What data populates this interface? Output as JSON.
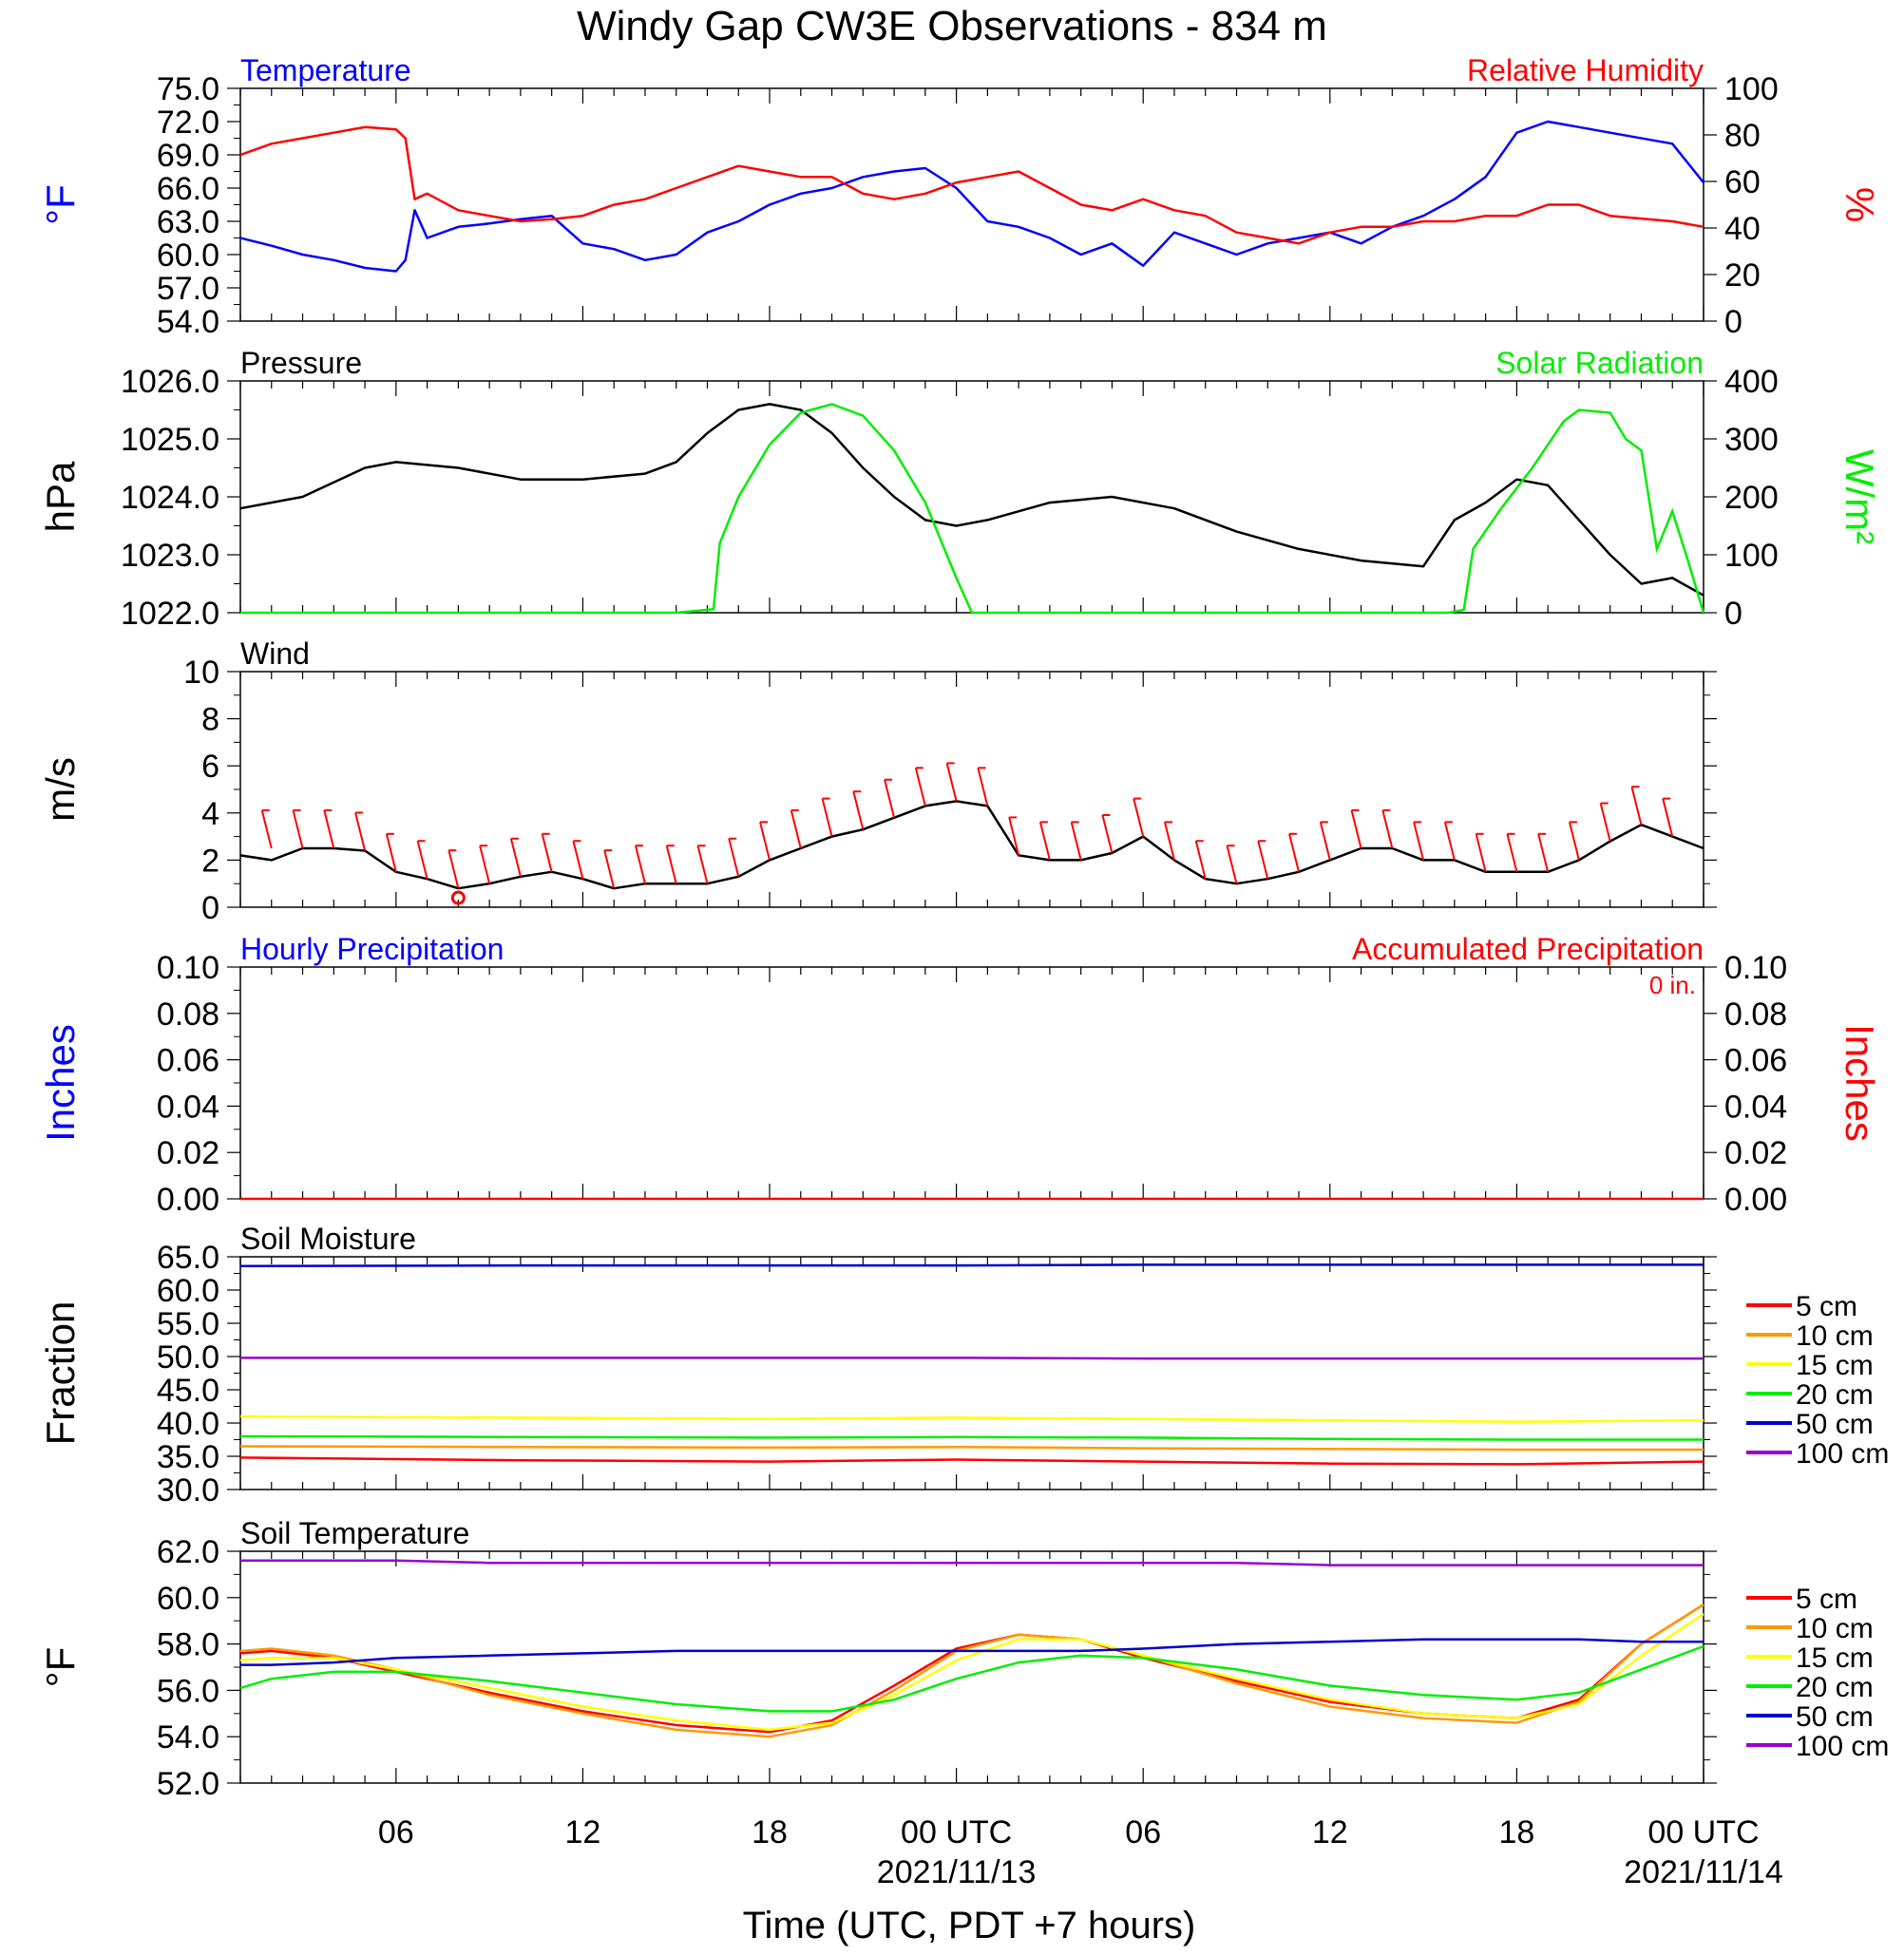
{
  "title": "Windy Gap CW3E Observations - 834 m",
  "xaxis": {
    "label": "Time (UTC, PDT +7 hours)",
    "ticks": [
      "06",
      "12",
      "18",
      "00 UTC",
      "06",
      "12",
      "18",
      "00 UTC"
    ],
    "dates": [
      "2021/11/13",
      "2021/11/14"
    ]
  },
  "colors": {
    "blue": "#0000ff",
    "red": "#ff0000",
    "green": "#00ee00",
    "black": "#000000",
    "orange": "#ff9900",
    "yellow": "#ffff00",
    "purple": "#9900cc",
    "soil50": "#0000cc"
  },
  "chart_data": [
    {
      "id": "temp_rh",
      "type": "line",
      "title_left": "Temperature",
      "title_right": "Relative Humidity",
      "ylabel_left": "°F",
      "ylabel_right": "%",
      "y_left_ticks": [
        "54.0",
        "57.0",
        "60.0",
        "63.0",
        "66.0",
        "69.0",
        "72.0",
        "75.0"
      ],
      "y_right_ticks": [
        "0",
        "20",
        "40",
        "60",
        "80",
        "100"
      ],
      "ylim_left": [
        54,
        75
      ],
      "ylim_right": [
        0,
        100
      ],
      "x": [
        1,
        2,
        3,
        4,
        5,
        6,
        6.3,
        6.6,
        7,
        8,
        9,
        10,
        11,
        12,
        13,
        14,
        15,
        16,
        17,
        18,
        19,
        20,
        21,
        22,
        23,
        24,
        25,
        26,
        27,
        28,
        29,
        30,
        31,
        32,
        33,
        34,
        35,
        36,
        37,
        38,
        39,
        40,
        41,
        42,
        43,
        44,
        45,
        47,
        48
      ],
      "series": [
        {
          "name": "Temperature",
          "color": "blue",
          "axis": "left",
          "values": [
            61.5,
            60.8,
            60.0,
            59.5,
            58.8,
            58.5,
            59.5,
            64.0,
            61.5,
            62.5,
            62.8,
            63.2,
            63.5,
            61.0,
            60.5,
            59.5,
            60.0,
            62.0,
            63.0,
            64.5,
            65.5,
            66.0,
            67.0,
            67.5,
            67.8,
            66.0,
            63.0,
            62.5,
            61.5,
            60.0,
            61.0,
            59.0,
            62.0,
            61.0,
            60.0,
            61.0,
            61.5,
            62.0,
            61.0,
            62.5,
            63.5,
            65.0,
            67.0,
            71.0,
            72.0,
            71.5,
            71.0,
            70.0,
            66.5
          ]
        },
        {
          "name": "Relative Humidity",
          "color": "red",
          "axis": "left",
          "values": [
            69.0,
            70.0,
            70.5,
            71.0,
            71.5,
            71.3,
            70.5,
            65.0,
            65.5,
            64.0,
            63.5,
            63.0,
            63.2,
            63.5,
            64.5,
            65.0,
            66.0,
            67.0,
            68.0,
            67.5,
            67.0,
            67.0,
            65.5,
            65.0,
            65.5,
            66.5,
            67.0,
            67.5,
            66.0,
            64.5,
            64.0,
            65.0,
            64.0,
            63.5,
            62.0,
            61.5,
            61.0,
            62.0,
            62.5,
            62.5,
            63.0,
            63.0,
            63.5,
            63.5,
            64.5,
            64.5,
            63.5,
            63.0,
            62.5
          ]
        }
      ]
    },
    {
      "id": "pressure_solar",
      "type": "line",
      "title_left": "Pressure",
      "title_right": "Solar Radiation",
      "ylabel_left": "hPa",
      "ylabel_right": "W/m²",
      "y_left_ticks": [
        "1022.0",
        "1023.0",
        "1024.0",
        "1025.0",
        "1026.0"
      ],
      "y_right_ticks": [
        "0",
        "100",
        "200",
        "300",
        "400"
      ],
      "ylim_left": [
        1022,
        1026
      ],
      "ylim_right": [
        0,
        400
      ],
      "x": [
        1,
        3,
        5,
        6,
        8,
        10,
        12,
        14,
        15,
        16,
        17,
        18,
        19,
        20,
        21,
        22,
        23,
        24,
        25,
        27,
        29,
        31,
        33,
        35,
        37,
        39,
        40,
        41,
        42,
        43,
        44,
        45,
        46,
        47,
        48
      ],
      "series": [
        {
          "name": "Pressure",
          "color": "black",
          "axis": "left",
          "values": [
            1023.8,
            1024.0,
            1024.5,
            1024.6,
            1024.5,
            1024.3,
            1024.3,
            1024.4,
            1024.6,
            1025.1,
            1025.5,
            1025.6,
            1025.5,
            1025.1,
            1024.5,
            1024.0,
            1023.6,
            1023.5,
            1023.6,
            1023.9,
            1024.0,
            1023.8,
            1023.4,
            1023.1,
            1022.9,
            1022.8,
            1023.6,
            1023.9,
            1024.3,
            1024.2,
            1023.6,
            1023.0,
            1022.5,
            1022.6,
            1022.3
          ]
        }
      ]
    },
    {
      "id": "wind",
      "type": "line",
      "title_left": "Wind",
      "ylabel_left": "m/s",
      "y_left_ticks": [
        "0",
        "2",
        "4",
        "6",
        "8",
        "10"
      ],
      "ylim_left": [
        0,
        10
      ],
      "x": [
        1,
        2,
        3,
        4,
        5,
        6,
        7,
        8,
        9,
        10,
        11,
        12,
        13,
        14,
        15,
        16,
        17,
        18,
        19,
        20,
        21,
        22,
        23,
        24,
        25,
        26,
        27,
        28,
        29,
        30,
        31,
        32,
        33,
        34,
        35,
        36,
        37,
        38,
        39,
        40,
        41,
        42,
        43,
        44,
        45,
        46,
        47,
        48
      ],
      "series": [
        {
          "name": "Wind Speed",
          "color": "black",
          "axis": "left",
          "values": [
            2.2,
            2.0,
            2.5,
            2.5,
            2.4,
            1.5,
            1.2,
            0.8,
            1.0,
            1.3,
            1.5,
            1.2,
            0.8,
            1.0,
            1.0,
            1.0,
            1.3,
            2.0,
            2.5,
            3.0,
            3.3,
            3.8,
            4.3,
            4.5,
            4.3,
            2.2,
            2.0,
            2.0,
            2.3,
            3.0,
            2.0,
            1.2,
            1.0,
            1.2,
            1.5,
            2.0,
            2.5,
            2.5,
            2.0,
            2.0,
            1.5,
            1.5,
            1.5,
            2.0,
            2.8,
            3.5,
            3.0,
            2.5
          ]
        }
      ],
      "barb_x": [
        2,
        3,
        4,
        5,
        6,
        7,
        8,
        9,
        10,
        11,
        12,
        13,
        14,
        15,
        16,
        17,
        18,
        19,
        20,
        21,
        22,
        23,
        24,
        25,
        26,
        27,
        28,
        29,
        30,
        31,
        32,
        33,
        34,
        35,
        36,
        37,
        38,
        39,
        40,
        41,
        42,
        43,
        44,
        45,
        46,
        47
      ],
      "barb_speed": [
        2.5,
        2.5,
        2.5,
        2.4,
        1.5,
        1.2,
        0.8,
        1.0,
        1.3,
        1.5,
        1.2,
        0.8,
        1.0,
        1.0,
        1.0,
        1.3,
        2.0,
        2.5,
        3.0,
        3.3,
        3.8,
        4.3,
        4.5,
        4.3,
        2.2,
        2.0,
        2.0,
        2.3,
        3.0,
        2.0,
        1.2,
        1.0,
        1.2,
        1.5,
        2.0,
        2.5,
        2.5,
        2.0,
        2.0,
        1.5,
        1.5,
        1.5,
        2.0,
        2.8,
        3.5,
        3.0
      ],
      "calm_marker_x": 8
    },
    {
      "id": "precip",
      "type": "line",
      "title_left": "Hourly Precipitation",
      "title_right": "Accumulated Precipitation",
      "annotation": "0 in.",
      "ylabel_left": "Inches",
      "ylabel_right": "Inches",
      "y_left_ticks": [
        "0.00",
        "0.02",
        "0.04",
        "0.06",
        "0.08",
        "0.10"
      ],
      "y_right_ticks": [
        "0.00",
        "0.02",
        "0.04",
        "0.06",
        "0.08",
        "0.10"
      ],
      "ylim_left": [
        0,
        0.1
      ],
      "ylim_right": [
        0,
        0.1
      ],
      "x": [
        1,
        48
      ],
      "series": [
        {
          "color": "red",
          "axis": "left",
          "values": [
            0,
            0
          ]
        }
      ]
    },
    {
      "id": "soil_moisture",
      "type": "line",
      "title_left": "Soil Moisture",
      "ylabel_left": "Fraction",
      "y_left_ticks": [
        "30.0",
        "35.0",
        "40.0",
        "45.0",
        "50.0",
        "55.0",
        "60.0",
        "65.0"
      ],
      "ylim_left": [
        30,
        65
      ],
      "x": [
        1,
        10,
        18,
        24,
        30,
        36,
        42,
        48
      ],
      "series": [
        {
          "name": "5 cm",
          "color": "red",
          "axis": "left",
          "values": [
            34.8,
            34.4,
            34.2,
            34.5,
            34.2,
            33.9,
            33.8,
            34.2
          ]
        },
        {
          "name": "10 cm",
          "color": "orange",
          "axis": "left",
          "values": [
            36.5,
            36.4,
            36.3,
            36.4,
            36.2,
            36.1,
            36.0,
            36.0
          ]
        },
        {
          "name": "15 cm",
          "color": "yellow",
          "axis": "left",
          "values": [
            41.0,
            40.8,
            40.6,
            40.8,
            40.6,
            40.4,
            40.2,
            40.4
          ]
        },
        {
          "name": "20 cm",
          "color": "green",
          "axis": "left",
          "values": [
            38.0,
            37.9,
            37.8,
            37.9,
            37.8,
            37.6,
            37.5,
            37.5
          ]
        },
        {
          "name": "50 cm",
          "color": "soil50",
          "axis": "left",
          "values": [
            63.6,
            63.7,
            63.7,
            63.7,
            63.8,
            63.8,
            63.8,
            63.8
          ]
        },
        {
          "name": "100 cm",
          "color": "purple",
          "axis": "left",
          "values": [
            49.8,
            49.8,
            49.8,
            49.8,
            49.7,
            49.7,
            49.7,
            49.7
          ]
        }
      ]
    },
    {
      "id": "soil_temp",
      "type": "line",
      "title_left": "Soil Temperature",
      "ylabel_left": "°F",
      "y_left_ticks": [
        "52.0",
        "54.0",
        "56.0",
        "58.0",
        "60.0",
        "62.0"
      ],
      "ylim_left": [
        52,
        62
      ],
      "x": [
        1,
        2,
        4,
        6,
        9,
        12,
        15,
        18,
        20,
        22,
        24,
        26,
        28,
        30,
        33,
        36,
        39,
        42,
        44,
        46,
        48
      ],
      "series": [
        {
          "name": "5 cm",
          "color": "red",
          "axis": "left",
          "values": [
            57.6,
            57.7,
            57.4,
            56.8,
            55.9,
            55.1,
            54.5,
            54.2,
            54.7,
            56.2,
            57.8,
            58.4,
            58.2,
            57.4,
            56.4,
            55.5,
            55.0,
            54.8,
            55.6,
            58.0,
            59.7
          ]
        },
        {
          "name": "10 cm",
          "color": "orange",
          "axis": "left",
          "values": [
            57.7,
            57.8,
            57.5,
            56.9,
            55.8,
            55.0,
            54.3,
            54.0,
            54.5,
            56.0,
            57.7,
            58.4,
            58.2,
            57.5,
            56.3,
            55.3,
            54.8,
            54.6,
            55.5,
            58.0,
            59.7
          ]
        },
        {
          "name": "15 cm",
          "color": "yellow",
          "axis": "left",
          "values": [
            57.3,
            57.4,
            57.4,
            56.9,
            56.1,
            55.3,
            54.7,
            54.3,
            54.6,
            55.8,
            57.3,
            58.2,
            58.2,
            57.5,
            56.5,
            55.6,
            55.0,
            54.8,
            55.4,
            57.5,
            59.3
          ]
        },
        {
          "name": "20 cm",
          "color": "green",
          "axis": "left",
          "values": [
            56.1,
            56.5,
            56.8,
            56.8,
            56.4,
            55.9,
            55.4,
            55.1,
            55.1,
            55.6,
            56.5,
            57.2,
            57.5,
            57.4,
            56.9,
            56.2,
            55.8,
            55.6,
            55.9,
            56.9,
            57.9
          ]
        },
        {
          "name": "50 cm",
          "color": "soil50",
          "axis": "left",
          "values": [
            57.1,
            57.1,
            57.2,
            57.4,
            57.5,
            57.6,
            57.7,
            57.7,
            57.7,
            57.7,
            57.7,
            57.7,
            57.7,
            57.8,
            58.0,
            58.1,
            58.2,
            58.2,
            58.2,
            58.1,
            58.1
          ]
        },
        {
          "name": "100 cm",
          "color": "purple",
          "axis": "left",
          "values": [
            61.6,
            61.6,
            61.6,
            61.6,
            61.5,
            61.5,
            61.5,
            61.5,
            61.5,
            61.5,
            61.5,
            61.5,
            61.5,
            61.5,
            61.5,
            61.4,
            61.4,
            61.4,
            61.4,
            61.4,
            61.4
          ]
        }
      ]
    }
  ],
  "legend": [
    "5 cm",
    "10 cm",
    "15 cm",
    "20 cm",
    "50 cm",
    "100 cm"
  ],
  "legend_colors": [
    "red",
    "orange",
    "yellow",
    "green",
    "soil50",
    "purple"
  ]
}
